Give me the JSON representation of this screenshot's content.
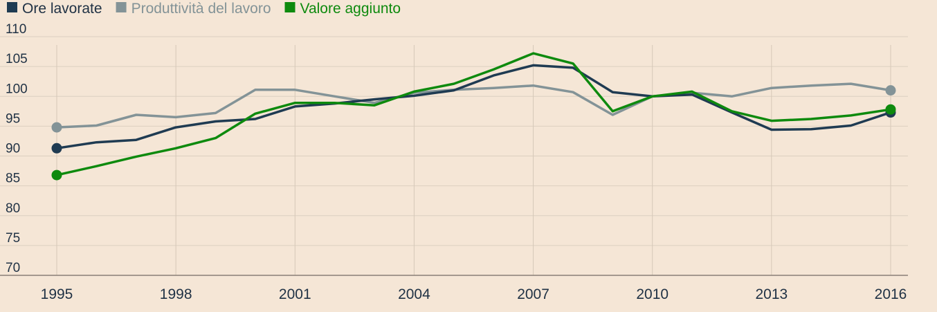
{
  "chart_data": {
    "type": "line",
    "title": "",
    "xlabel": "",
    "ylabel": "",
    "x": [
      1995,
      1996,
      1997,
      1998,
      1999,
      2000,
      2001,
      2002,
      2003,
      2004,
      2005,
      2006,
      2007,
      2008,
      2009,
      2010,
      2011,
      2012,
      2013,
      2014,
      2015,
      2016
    ],
    "x_ticks": [
      "1995",
      "1998",
      "2001",
      "2004",
      "2007",
      "2010",
      "2013",
      "2016"
    ],
    "ylim": [
      70,
      110
    ],
    "y_ticks": [
      "70",
      "75",
      "80",
      "85",
      "90",
      "95",
      "100",
      "105",
      "110"
    ],
    "grid": "vertical at x ticks, horizontal at y ticks",
    "legend_position": "top-left",
    "series": [
      {
        "name": "Ore lavorate",
        "color": "#1f3b52",
        "values": [
          91.3,
          92.3,
          92.7,
          94.8,
          95.8,
          96.2,
          98.3,
          98.8,
          99.5,
          100.1,
          101.0,
          103.5,
          105.2,
          104.8,
          100.7,
          100.0,
          100.3,
          97.3,
          94.4,
          94.5,
          95.1,
          97.3
        ]
      },
      {
        "name": "Produttività del lavoro",
        "color": "#839397",
        "values": [
          94.8,
          95.1,
          96.9,
          96.5,
          97.2,
          101.1,
          101.1,
          100.0,
          98.9,
          100.6,
          101.1,
          101.4,
          101.8,
          100.7,
          96.9,
          100.0,
          100.6,
          100.0,
          101.4,
          101.8,
          102.1,
          101.0
        ]
      },
      {
        "name": "Valore aggiunto",
        "color": "#0e8a0e",
        "values": [
          86.8,
          88.3,
          89.9,
          91.3,
          93.0,
          97.1,
          98.9,
          98.9,
          98.5,
          100.8,
          102.1,
          104.5,
          107.2,
          105.5,
          97.5,
          100.0,
          100.8,
          97.5,
          95.9,
          96.2,
          96.8,
          97.8
        ]
      }
    ],
    "endpoint_markers": true
  }
}
